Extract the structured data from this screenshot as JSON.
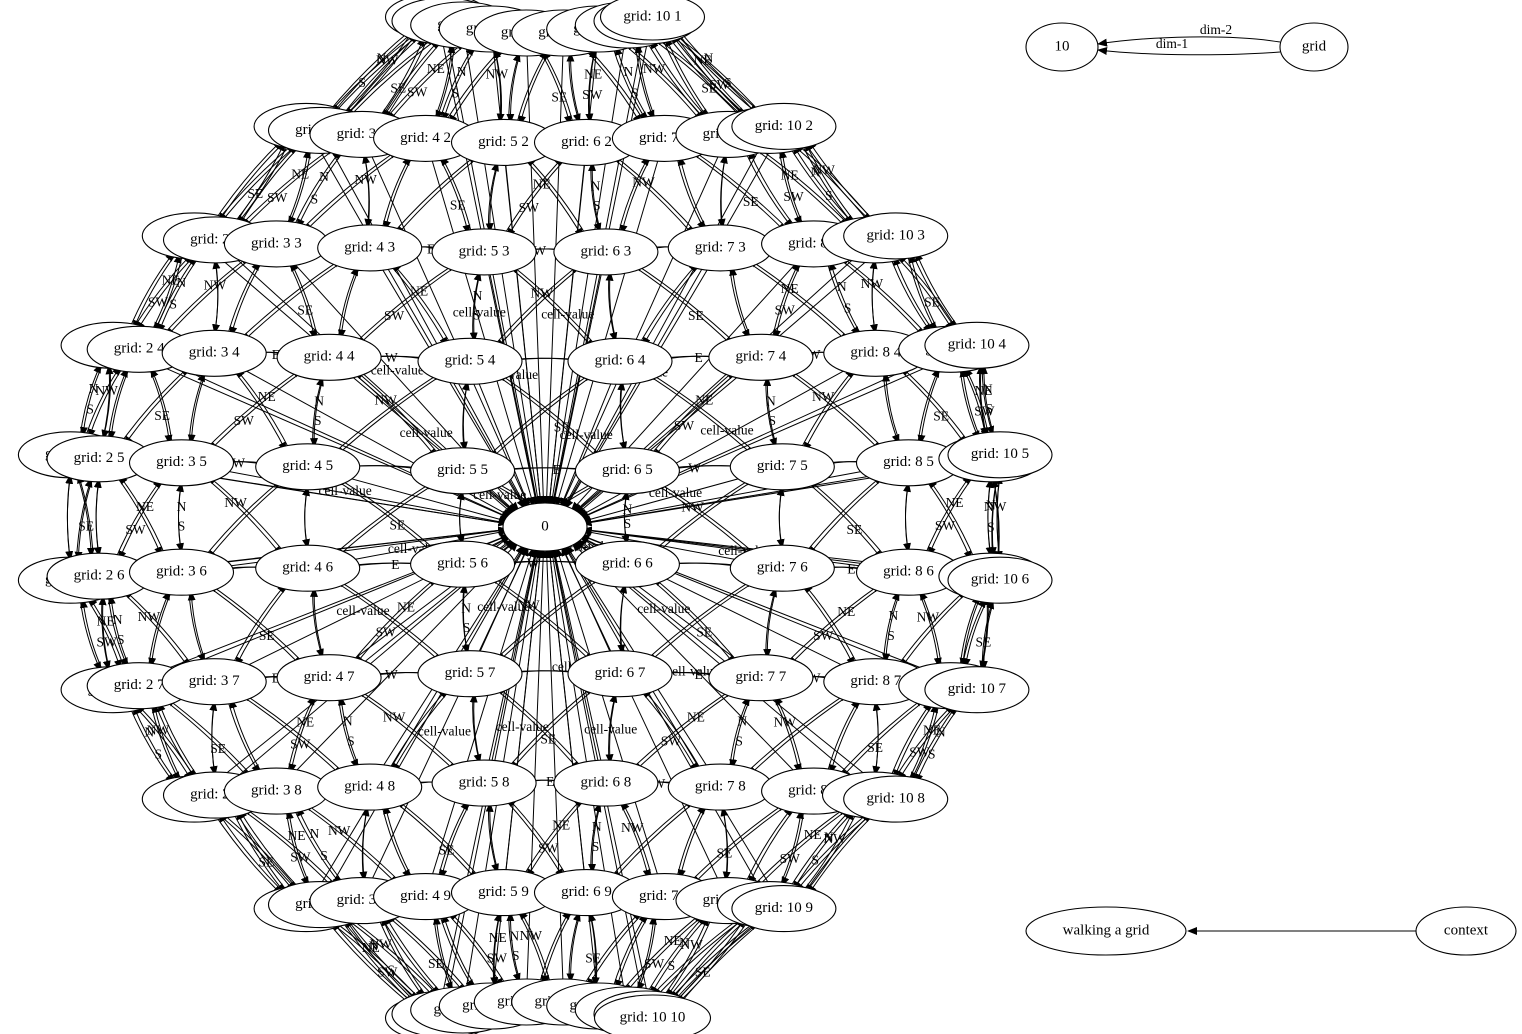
{
  "graph": {
    "grid_node_label_prefix": "grid: ",
    "grid_size": 10,
    "center_node_label": "0",
    "cell_value_edge_label": "cell-value",
    "direction_labels": [
      "N",
      "S",
      "E",
      "W",
      "NE",
      "NW",
      "SE",
      "SW"
    ],
    "legend": {
      "dim_edges": {
        "source_label": "grid",
        "target_label": "10",
        "edge_labels": [
          "dim-1",
          "dim-2"
        ]
      },
      "context_edge": {
        "source_label": "context",
        "target_label": "walking a grid"
      }
    }
  }
}
